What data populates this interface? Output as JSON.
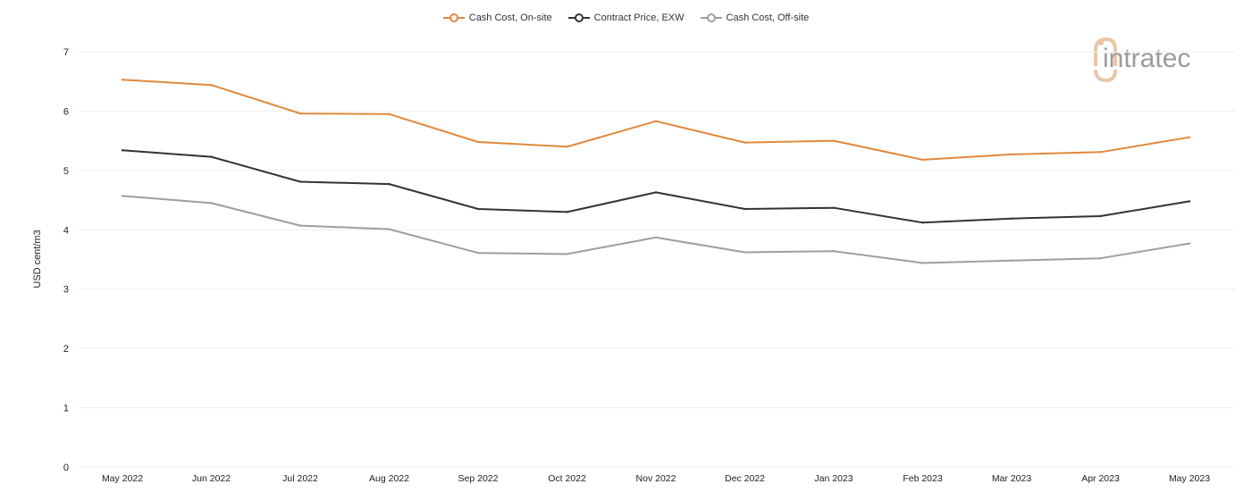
{
  "chart_data": {
    "type": "line",
    "title": "",
    "xlabel": "",
    "ylabel": "USD cent/m3",
    "ylim": [
      0,
      7
    ],
    "yticks": [
      0,
      1,
      2,
      3,
      4,
      5,
      6,
      7
    ],
    "grid": true,
    "legend_position": "top-center",
    "categories": [
      "May 2022",
      "Jun 2022",
      "Jul 2022",
      "Aug 2022",
      "Sep 2022",
      "Oct 2022",
      "Nov 2022",
      "Dec 2022",
      "Jan 2023",
      "Feb 2023",
      "Mar 2023",
      "Apr 2023",
      "May 2023"
    ],
    "series": [
      {
        "name": "Cash Cost, On-site",
        "color": "#e0883e",
        "values": [
          6.53,
          6.44,
          5.96,
          5.95,
          5.48,
          5.4,
          5.83,
          5.47,
          5.5,
          5.18,
          5.27,
          5.31,
          5.56
        ]
      },
      {
        "name": "Contract Price, EXW",
        "color": "#333333",
        "values": [
          5.34,
          5.23,
          4.81,
          4.77,
          4.35,
          4.3,
          4.63,
          4.35,
          4.37,
          4.12,
          4.19,
          4.23,
          4.48
        ]
      },
      {
        "name": "Cash Cost, Off-site",
        "color": "#9e9e9e",
        "values": [
          4.57,
          4.45,
          4.07,
          4.01,
          3.61,
          3.59,
          3.87,
          3.62,
          3.64,
          3.44,
          3.48,
          3.52,
          3.77
        ]
      }
    ]
  },
  "logo": {
    "text": "intratec",
    "icon": "intratec-logo-icon",
    "color": "#9b9b9b",
    "accent": "#e8c7a8"
  }
}
